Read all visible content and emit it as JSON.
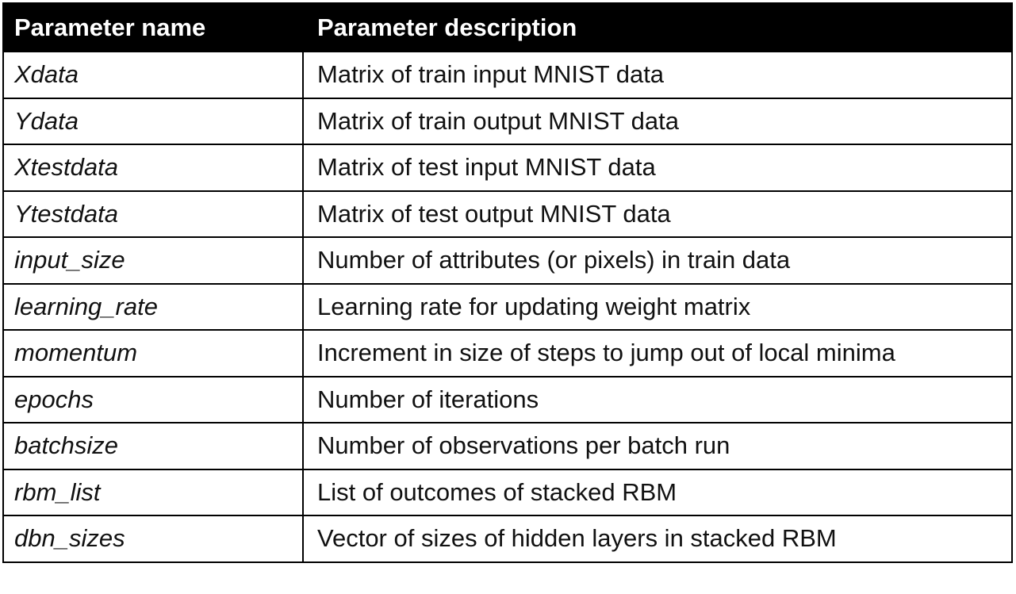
{
  "table": {
    "headers": [
      "Parameter name",
      "Parameter description"
    ],
    "rows": [
      {
        "name": "Xdata",
        "description": "Matrix of train input MNIST data"
      },
      {
        "name": "Ydata",
        "description": "Matrix of train output MNIST data"
      },
      {
        "name": "Xtestdata",
        "description": "Matrix of test input MNIST data"
      },
      {
        "name": "Ytestdata",
        "description": "Matrix of test output MNIST data"
      },
      {
        "name": "input_size",
        "description": "Number of attributes (or pixels) in train data"
      },
      {
        "name": "learning_rate",
        "description": "Learning rate for updating weight matrix"
      },
      {
        "name": "momentum",
        "description": "Increment in size of steps to jump out of local minima"
      },
      {
        "name": "epochs",
        "description": "Number of iterations"
      },
      {
        "name": "batchsize",
        "description": "Number of observations per batch run"
      },
      {
        "name": "rbm_list",
        "description": "List of outcomes of stacked RBM"
      },
      {
        "name": "dbn_sizes",
        "description": "Vector of sizes of hidden layers in stacked RBM"
      }
    ]
  }
}
